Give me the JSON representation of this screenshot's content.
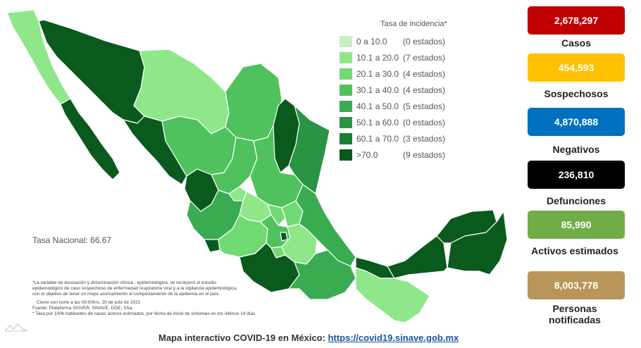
{
  "colors": {
    "range0": "#c6efc0",
    "range1": "#8ee889",
    "range2": "#72da74",
    "range3": "#4fc25e",
    "range4": "#39ac52",
    "range5": "#2a9445",
    "range6": "#1b7e37",
    "range7": "#0a5a1e"
  },
  "legend": {
    "title": "Tasa de incidencia*",
    "items": [
      {
        "range": "0   a  10.0",
        "count": "(0 estados)"
      },
      {
        "range": "10.1  a  20.0",
        "count": "(7 estados)"
      },
      {
        "range": "20.1  a  30.0",
        "count": "(4 estados)"
      },
      {
        "range": "30.1  a  40.0",
        "count": "(4 estados)"
      },
      {
        "range": "40.1  a  50.0",
        "count": "(5 estados)"
      },
      {
        "range": "50.1  a  60.0",
        "count": "(0 estados)"
      },
      {
        "range": "60.1  a  70.0",
        "count": "(3 estados)"
      },
      {
        "range": ">70.0",
        "count": "(9 estados)"
      }
    ]
  },
  "tasa_nacional": "Tasa Nacional: 66.67",
  "footnotes": {
    "line1": "*La variable de asociación y dictaminación clínica - epidemiológica, se incorporó al estudio",
    "line2": "epidemiológico de caso sospechoso de enfermedad respiratoria viral y a la vigilancia epidemiológica,",
    "line3": "con el objetivo de tener un mejor acercamiento al comportamiento de la epidemia en el país.",
    "line4": "Cierre con corte a las 09:00hrs, 20 de julio de 2021",
    "line5": "Fuente: Plataforma SISVER, SINAVE, DGE, SSa.",
    "line6": "* Tasa por 100k habitantes de casos activos estimados, por fecha de inicio de síntomas en los últimos 14 días."
  },
  "bottom": {
    "label": "Mapa interactivo COVID-19 en México: ",
    "url": "https://covid19.sinave.gob.mx"
  },
  "stats": [
    {
      "value": "2,678,297",
      "label": "Casos",
      "color": "#c00000"
    },
    {
      "value": "454,593",
      "label": "Sospechosos",
      "color": "#ffc000"
    },
    {
      "value": "4,870,888",
      "label": "Negativos",
      "color": "#0070c0"
    },
    {
      "value": "236,810",
      "label": "Defunciones",
      "color": "#000000"
    },
    {
      "value": "85,990",
      "label": "Activos estimados",
      "color": "#70ad47"
    },
    {
      "value": "8,003,778",
      "label": "Personas notificadas",
      "color": "#b8965a"
    }
  ]
}
